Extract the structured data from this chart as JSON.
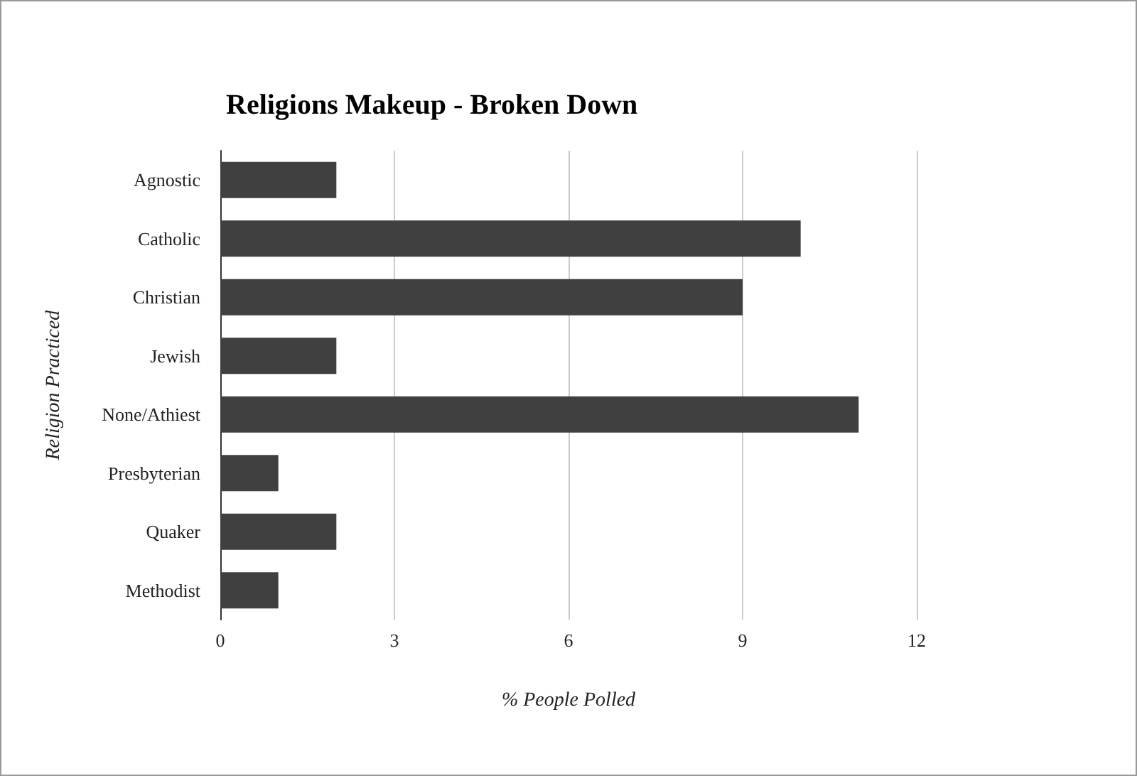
{
  "chart_data": {
    "type": "bar",
    "orientation": "horizontal",
    "title": "Religions Makeup - Broken Down",
    "xlabel": "% People Polled",
    "ylabel": "Religion Practiced",
    "categories": [
      "Agnostic",
      "Catholic",
      "Christian",
      "Jewish",
      "None/Athiest",
      "Presbyterian",
      "Quaker",
      "Methodist"
    ],
    "values": [
      2,
      10,
      9,
      2,
      11,
      1,
      2,
      1
    ],
    "color": "#404040",
    "xlim": [
      0,
      12
    ],
    "xticks": [
      0,
      3,
      6,
      9,
      12
    ],
    "grid": "x"
  }
}
